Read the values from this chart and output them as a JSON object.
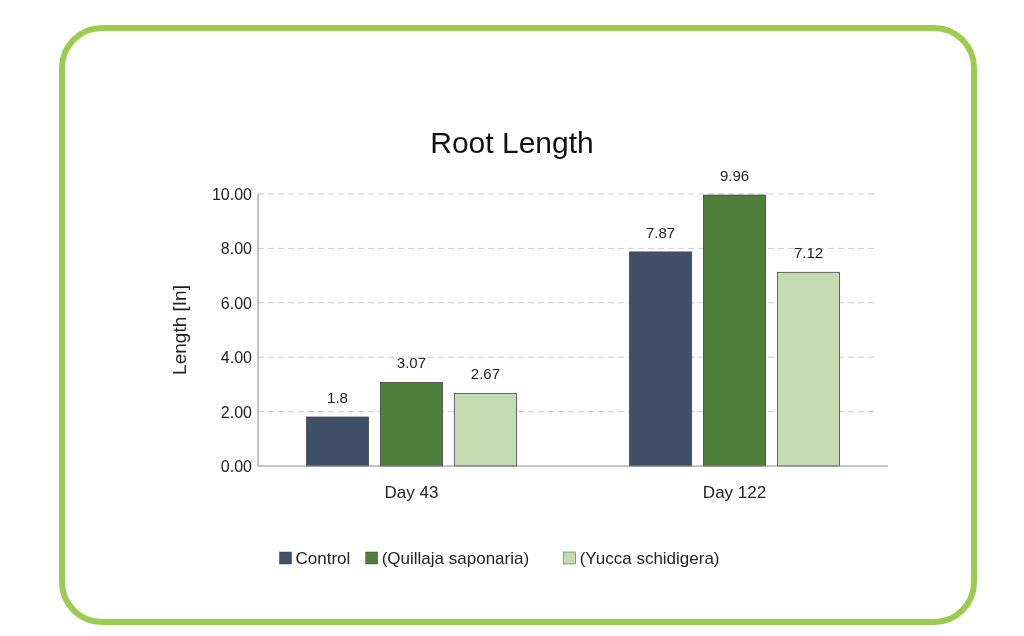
{
  "chart_data": {
    "type": "bar",
    "title": "Root Length",
    "ylabel": "Length [In]",
    "categories": [
      "Day 43",
      "Day 122"
    ],
    "series": [
      {
        "name": "Control",
        "color": "#3f5068",
        "values": [
          1.8,
          7.87
        ]
      },
      {
        "name": "(Quillaja saponaria)",
        "color": "#4e7f3a",
        "values": [
          3.07,
          9.96
        ]
      },
      {
        "name": "(Yucca schidigera)",
        "color": "#c3dcb1",
        "values": [
          2.67,
          7.12
        ]
      }
    ],
    "ylim": [
      0,
      10
    ],
    "yticks": [
      {
        "value": 0,
        "label": "0.00"
      },
      {
        "value": 2,
        "label": "2.00"
      },
      {
        "value": 4,
        "label": "4.00"
      },
      {
        "value": 6,
        "label": "6.00"
      },
      {
        "value": 8,
        "label": "8.00"
      },
      {
        "value": 10,
        "label": "10.00"
      }
    ],
    "grid": "y",
    "legend": "bottom",
    "data_labels": true
  }
}
